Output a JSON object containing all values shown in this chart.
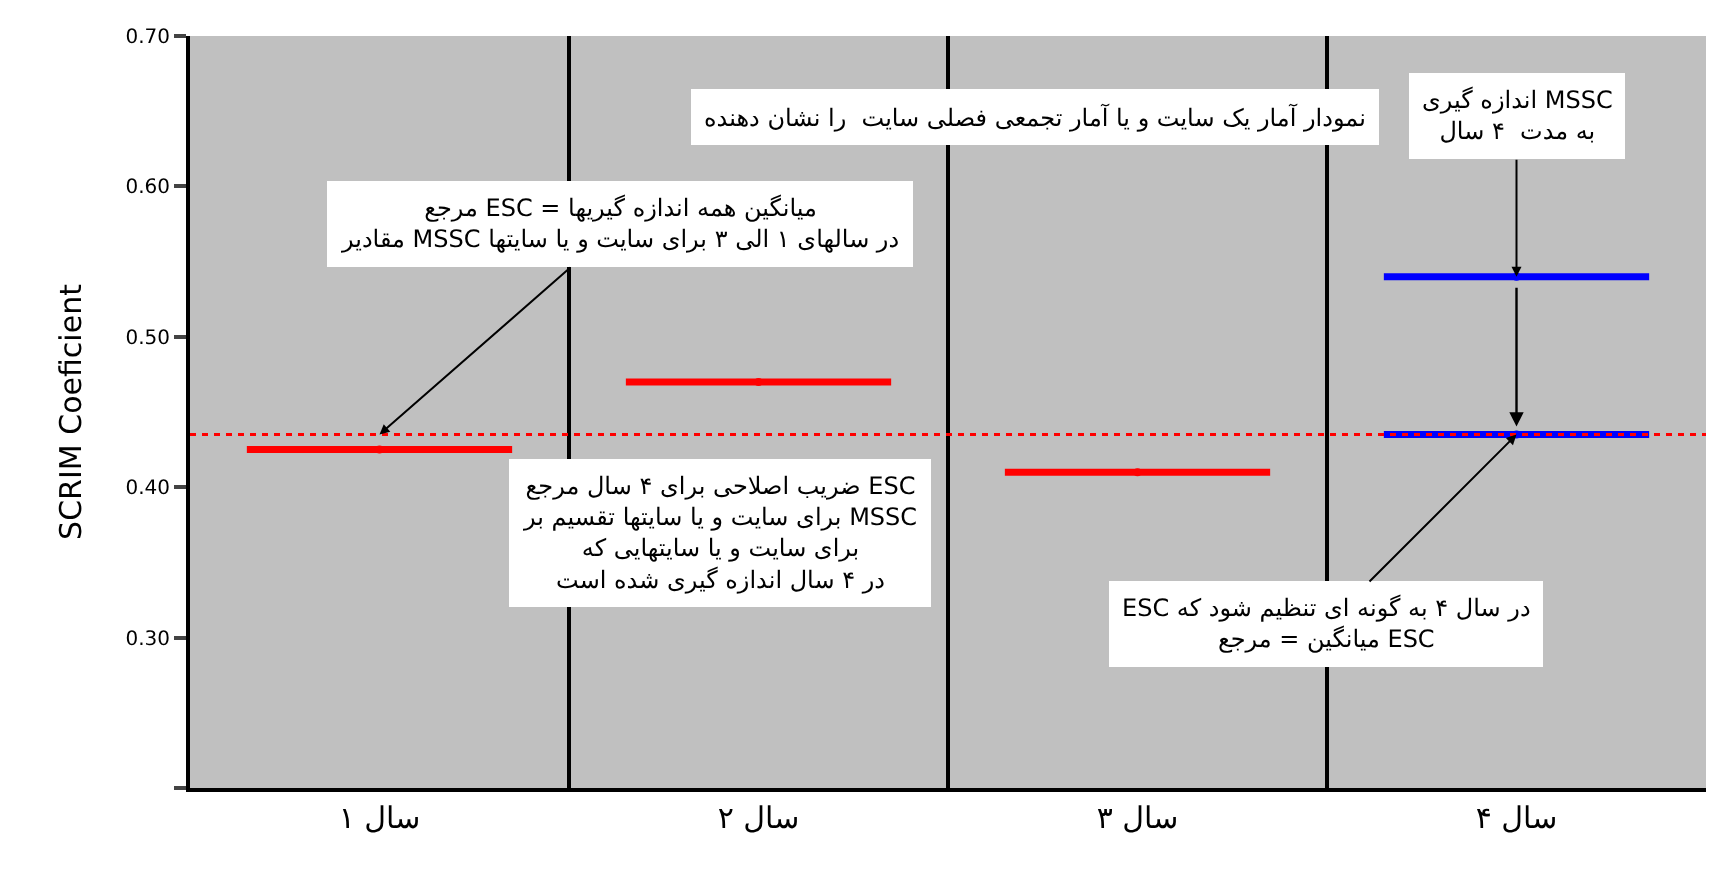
{
  "chart_data": {
    "type": "scatter",
    "marker": "circle",
    "ylabel": "SCRIM Coeficient",
    "categories": [
      "سال ۱",
      "سال ۲",
      "سال ۳",
      "سال ۴"
    ],
    "series": [
      {
        "colors": [
          "#ff0000",
          "#ff0000",
          "#ff0000",
          "#0000ff"
        ],
        "values": [
          0.425,
          0.47,
          0.41,
          0.54
        ]
      },
      {
        "color": "#0000ff",
        "values": [
          null,
          null,
          null,
          0.435
        ]
      }
    ],
    "ylim": [
      0.2,
      0.7
    ],
    "yticks": [
      {
        "value": 0.2,
        "label": null
      },
      {
        "value": 0.3,
        "label": "0.30"
      },
      {
        "value": 0.4,
        "label": "0.40"
      },
      {
        "value": 0.5,
        "label": "0.50"
      },
      {
        "value": 0.6,
        "label": "0.60"
      },
      {
        "value": 0.7,
        "label": "0.70"
      }
    ],
    "grid": "x",
    "ref_lines": [
      {
        "axis": "y",
        "value": 0.435,
        "color": "#ff0000",
        "line_style": "dotted"
      }
    ],
    "annotations": [
      "نمودار آمار یک سایت و یا آمار تجمعی فصلی سایت  را نشان دهنده",
      {
        "text": "مرجع ESC = میانگین همه اندازه گیریها\nمقادیر MSSC در سالهای ۱ الی ۳ برای سایت و یا سایتها",
        "x": "سال ۱",
        "y": 0.435
      },
      "ضریب اصلاحی برای ۴ سال مرجع ESC\nبرای سایت و یا سایتها تقسیم بر MSSC\nبرای سایت و یا سایتهایی که\nدر ۴ سال اندازه گیری شده است",
      {
        "text": "اندازه گیری MSSC\nبه مدت  ۴ سال",
        "x": "سال ۴",
        "y": 0.54
      },
      {
        "text": "ESC در سال ۴ به گونه ای تنظیم شود که\nمیانگین = مرجع ESC",
        "x": "سال ۴",
        "y": 0.435
      }
    ]
  }
}
